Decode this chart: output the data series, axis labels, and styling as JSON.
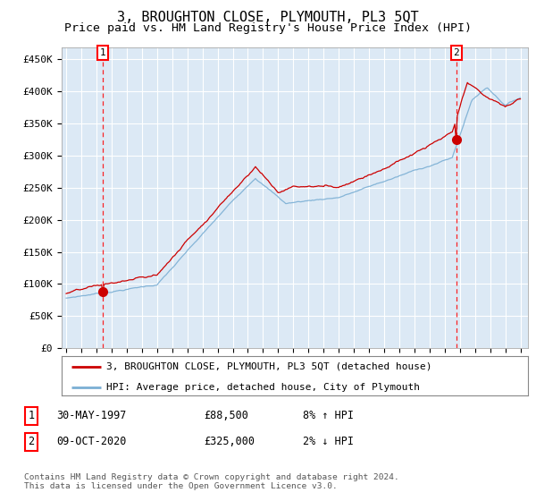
{
  "title": "3, BROUGHTON CLOSE, PLYMOUTH, PL3 5QT",
  "subtitle": "Price paid vs. HM Land Registry's House Price Index (HPI)",
  "title_fontsize": 11,
  "subtitle_fontsize": 9.5,
  "ylabel_ticks": [
    "£0",
    "£50K",
    "£100K",
    "£150K",
    "£200K",
    "£250K",
    "£300K",
    "£350K",
    "£400K",
    "£450K"
  ],
  "ytick_values": [
    0,
    50000,
    100000,
    150000,
    200000,
    250000,
    300000,
    350000,
    400000,
    450000
  ],
  "ylim": [
    0,
    468000
  ],
  "xlim_start": 1994.7,
  "xlim_end": 2025.5,
  "background_color": "#dce9f5",
  "plot_bg": "#dce9f5",
  "grid_color": "#ffffff",
  "sale1_x": 1997.41,
  "sale1_y": 88500,
  "sale1_label": "30-MAY-1997",
  "sale1_price": "£88,500",
  "sale1_hpi": "8% ↑ HPI",
  "sale2_x": 2020.77,
  "sale2_y": 325000,
  "sale2_label": "09-OCT-2020",
  "sale2_price": "£325,000",
  "sale2_hpi": "2% ↓ HPI",
  "red_line_color": "#cc0000",
  "blue_line_color": "#7bafd4",
  "legend1": "3, BROUGHTON CLOSE, PLYMOUTH, PL3 5QT (detached house)",
  "legend2": "HPI: Average price, detached house, City of Plymouth",
  "footer1": "Contains HM Land Registry data © Crown copyright and database right 2024.",
  "footer2": "This data is licensed under the Open Government Licence v3.0.",
  "xtick_years": [
    1995,
    1996,
    1997,
    1998,
    1999,
    2000,
    2001,
    2002,
    2003,
    2004,
    2005,
    2006,
    2007,
    2008,
    2009,
    2010,
    2011,
    2012,
    2013,
    2014,
    2015,
    2016,
    2017,
    2018,
    2019,
    2020,
    2021,
    2022,
    2023,
    2024,
    2025
  ]
}
